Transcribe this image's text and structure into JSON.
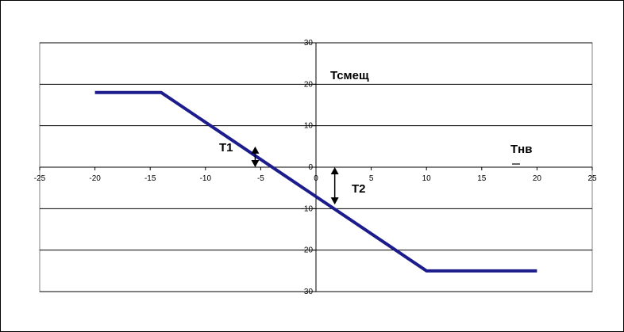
{
  "chart_data": {
    "type": "line",
    "title": "",
    "xlabel": "",
    "ylabel": "",
    "xlim": [
      -25,
      25
    ],
    "ylim": [
      -30,
      30
    ],
    "x_ticks": [
      -25,
      -20,
      -15,
      -10,
      -5,
      0,
      5,
      10,
      15,
      20,
      25
    ],
    "x_tick_labels": [
      "-25",
      "-20",
      "-15",
      "-10",
      "-5",
      "0",
      "5",
      "10",
      "15",
      "20",
      "25"
    ],
    "y_ticks": [
      -30,
      -20,
      -10,
      0,
      10,
      20,
      30
    ],
    "y_tick_labels": [
      "-30",
      "-20",
      "-10",
      "0",
      "10",
      "20",
      "30"
    ],
    "grid": "horizontal",
    "series": [
      {
        "color": "#1c1c8c",
        "x": [
          -20,
          -14,
          10,
          20
        ],
        "y": [
          18,
          18,
          -25,
          -25
        ]
      }
    ],
    "annotations": [
      {
        "id": "y_axis_name",
        "text": "Тсмещ"
      },
      {
        "id": "x_axis_name",
        "text": "Тнв"
      },
      {
        "id": "t1",
        "text": "T1"
      },
      {
        "id": "t2",
        "text": "T2"
      }
    ],
    "arrows": [
      {
        "id": "t1",
        "x": -5.5,
        "y_from": 5,
        "y_to": 0
      },
      {
        "id": "t2",
        "x": 1.7,
        "y_from": 0,
        "y_to": -9
      }
    ]
  }
}
